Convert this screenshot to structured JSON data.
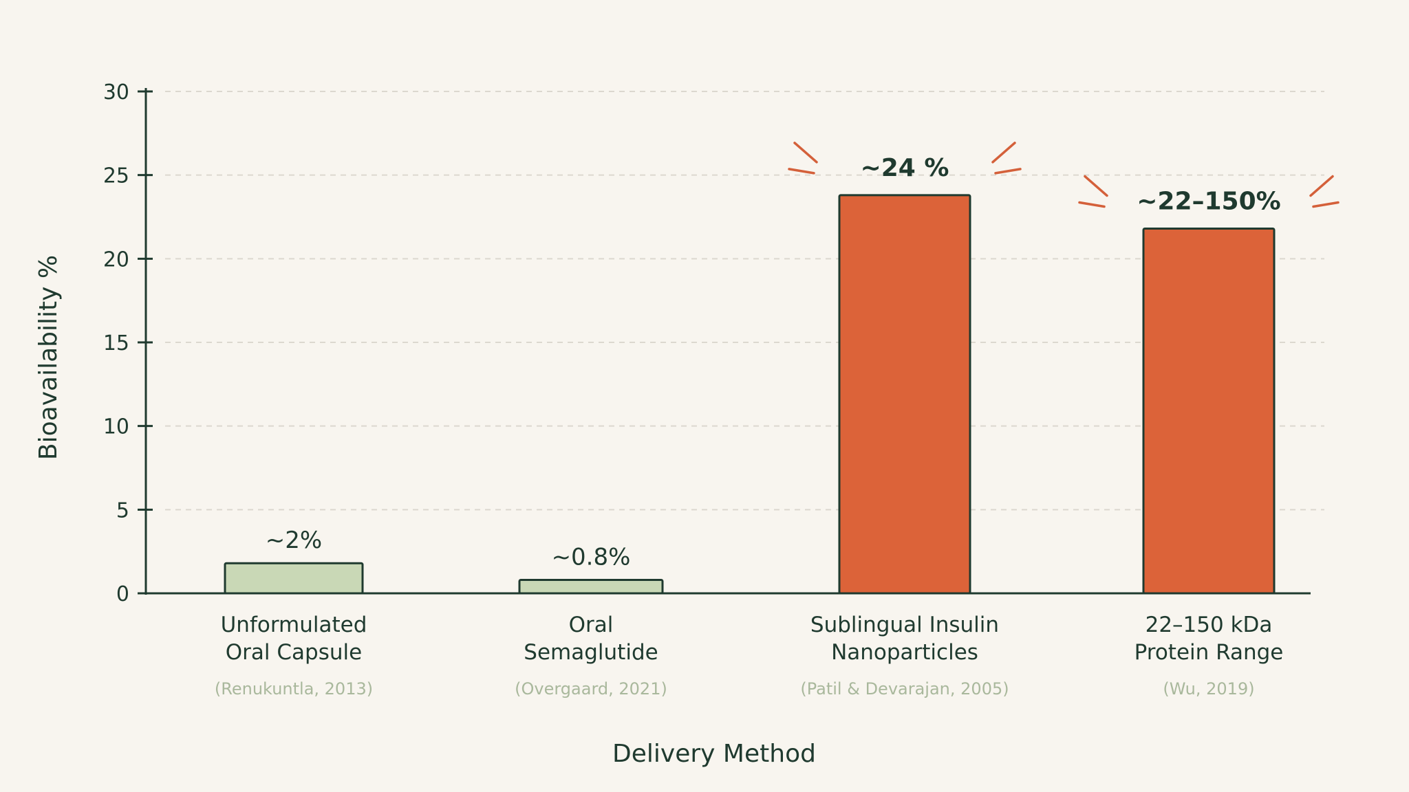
{
  "chart_data": {
    "type": "bar",
    "xlabel": "Delivery Method",
    "ylabel": "Bioavailability %",
    "ylim": [
      0,
      30
    ],
    "yticks": [
      0,
      5,
      10,
      15,
      20,
      25,
      30
    ],
    "grid": true,
    "categories": [
      {
        "label_lines": [
          "Unformulated",
          "Oral Capsule"
        ],
        "source": "(Renukuntla, 2013)"
      },
      {
        "label_lines": [
          "Oral",
          "Semaglutide"
        ],
        "source": "(Overgaard, 2021)"
      },
      {
        "label_lines": [
          "Sublingual Insulin",
          "Nanoparticles"
        ],
        "source": "(Patil & Devarajan, 2005)"
      },
      {
        "label_lines": [
          "22–150 kDa",
          "Protein Range"
        ],
        "source": "(Wu, 2019)"
      }
    ],
    "values": [
      1.8,
      0.8,
      23.8,
      21.8
    ],
    "data_labels": [
      "~2%",
      "~0.8%",
      "~24 %",
      "~22–150%"
    ],
    "highlighted": [
      false,
      false,
      true,
      true
    ],
    "colors": {
      "muted_fill": "#c9d8b6",
      "highlight_fill": "#dc6339",
      "bar_stroke": "#1f3a2f",
      "axis": "#1f3a2f",
      "grid": "#dcd8cf",
      "burst": "#d4603a"
    }
  }
}
